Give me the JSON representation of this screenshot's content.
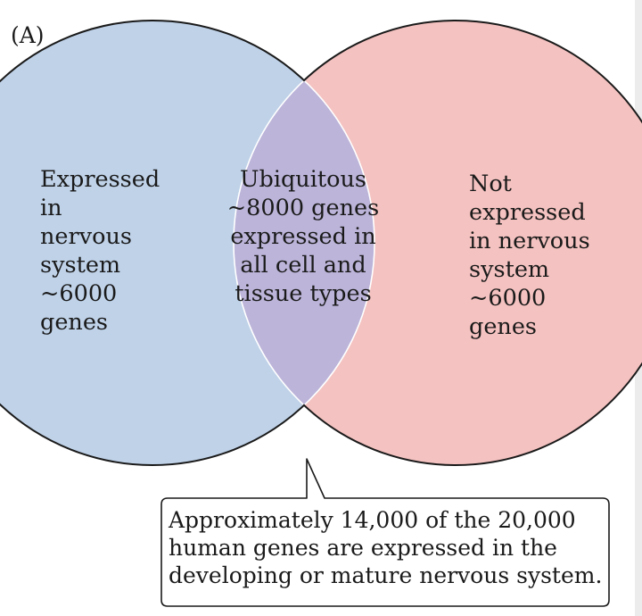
{
  "panel_label": "(A)",
  "left_region": {
    "lines": [
      "Expressed",
      "in",
      "nervous",
      "system",
      "~6000",
      "genes"
    ],
    "color": "#bfd2e8"
  },
  "center_region": {
    "lines": [
      "Ubiquitous",
      "~8000 genes",
      "expressed in",
      "all cell and",
      "tissue types"
    ],
    "color": "#bcb4d9"
  },
  "right_region": {
    "lines": [
      "Not",
      "expressed",
      "in nervous",
      "system",
      "~6000",
      "genes"
    ],
    "color": "#f4c2c0"
  },
  "callout": {
    "lines": [
      "Approximately 14,000 of the 20,000",
      "human genes are expressed in the",
      "developing or mature nervous system."
    ]
  }
}
